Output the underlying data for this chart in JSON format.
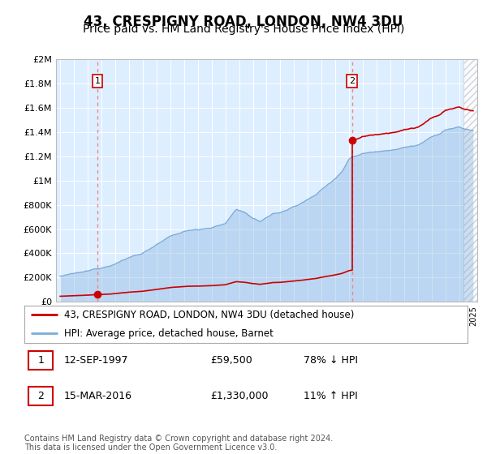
{
  "title": "43, CRESPIGNY ROAD, LONDON, NW4 3DU",
  "subtitle": "Price paid vs. HM Land Registry's House Price Index (HPI)",
  "title_fontsize": 12,
  "subtitle_fontsize": 10,
  "background_color": "#ffffff",
  "plot_bg_color": "#ddeeff",
  "grid_color": "#ffffff",
  "ylim": [
    0,
    2000000
  ],
  "yticks": [
    0,
    200000,
    400000,
    600000,
    800000,
    1000000,
    1200000,
    1400000,
    1600000,
    1800000,
    2000000
  ],
  "ytick_labels": [
    "£0",
    "£200K",
    "£400K",
    "£600K",
    "£800K",
    "£1M",
    "£1.2M",
    "£1.4M",
    "£1.6M",
    "£1.8M",
    "£2M"
  ],
  "xlim_start": 1994.7,
  "xlim_end": 2025.3,
  "sale1_date": 1997.72,
  "sale1_price": 59500,
  "sale1_label": "1",
  "sale2_date": 2016.21,
  "sale2_price": 1330000,
  "sale2_label": "2",
  "legend_line1": "43, CRESPIGNY ROAD, LONDON, NW4 3DU (detached house)",
  "legend_line2": "HPI: Average price, detached house, Barnet",
  "note1_label": "1",
  "note1_date": "12-SEP-1997",
  "note1_price": "£59,500",
  "note1_hpi": "78% ↓ HPI",
  "note2_label": "2",
  "note2_date": "15-MAR-2016",
  "note2_price": "£1,330,000",
  "note2_hpi": "11% ↑ HPI",
  "footer": "Contains HM Land Registry data © Crown copyright and database right 2024.\nThis data is licensed under the Open Government Licence v3.0.",
  "line_color_sales": "#cc0000",
  "line_color_hpi": "#7aabda",
  "marker_color": "#cc0000"
}
